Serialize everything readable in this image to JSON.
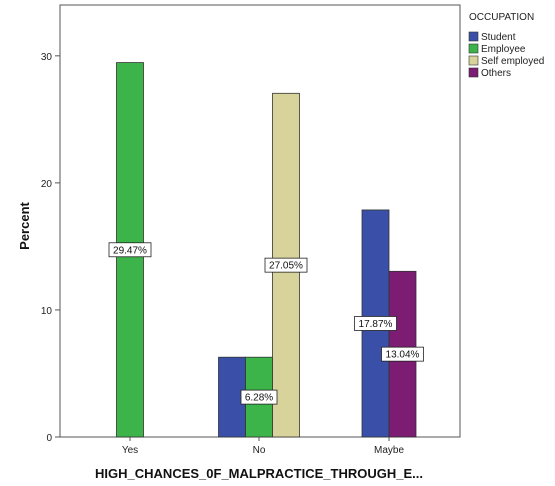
{
  "chart_data": {
    "type": "bar",
    "title": "",
    "xlabel": "HIGH_CHANCES_0F_MALPRACTICE_THROUGH_E...",
    "ylabel": "Percent",
    "categories": [
      "Yes",
      "No",
      "Maybe"
    ],
    "ylim": [
      0,
      34
    ],
    "yticks": [
      0,
      10,
      20,
      30
    ],
    "grid": false,
    "legend": {
      "title": "OCCUPATION",
      "placement": "right"
    },
    "series": [
      {
        "name": "Student",
        "color": "#3a4fa8",
        "values": [
          null,
          6.28,
          17.87
        ],
        "labels": [
          null,
          "",
          "17.87%"
        ]
      },
      {
        "name": "Employee",
        "color": "#3cb449",
        "values": [
          29.47,
          6.28,
          null
        ],
        "labels": [
          "29.47%",
          "",
          null
        ]
      },
      {
        "name": "Self employed",
        "color": "#d8d39a",
        "values": [
          null,
          27.05,
          null
        ],
        "labels": [
          null,
          "27.05%",
          null
        ]
      },
      {
        "name": "Others",
        "color": "#7c1c72",
        "values": [
          null,
          null,
          13.04
        ],
        "labels": [
          null,
          null,
          "13.04%"
        ]
      }
    ],
    "annotations": [
      {
        "text": "6.28%",
        "category": "No",
        "value": 6.28
      }
    ]
  }
}
